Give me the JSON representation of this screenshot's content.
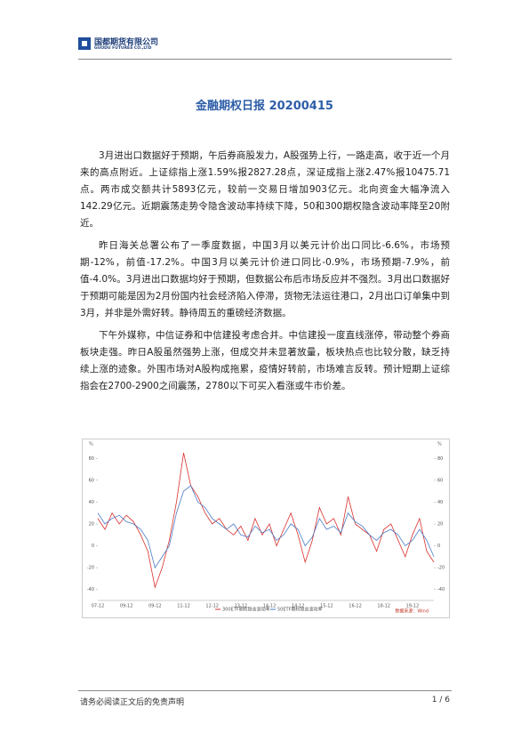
{
  "header": {
    "company": "国都期货有限公司",
    "company_en": "GUODU FUTURES CO.,LTD"
  },
  "title": "金融期权日报 20200415",
  "paragraphs": [
    "3月进出口数据好于预期，午后券商股发力，A股强势上行，一路走高，收于近一个月来的高点附近。上证综指上涨1.59%报2827.28点，深证成指上涨2.47%报10475.71点。两市成交额共计5893亿元，较前一交易日增加903亿元。北向资金大幅净流入142.29亿元。近期震荡走势令隐含波动率持续下降，50和300期权隐含波动率降至20附近。",
    "昨日海关总署公布了一季度数据，中国3月以美元计价出口同比-6.6%，市场预期-12%，前值-17.2%。中国3月以美元计价进口同比-0.9%，市场预期-7.9%，前值-4.0%。3月进出口数据均好于预期，但数据公布后市场反应并不强烈。3月出口数据好于预期可能是因为2月份国内社会经济陷入停滞，货物无法运往港口，2月出口订单集中到3月，并非是外需好转。静待周五的重磅经济数据。",
    "下午外媒称，中信证券和中信建投考虑合并。中信建投一度直线涨停，带动整个券商板块走强。昨日A股虽然强势上涨，但成交并未显著放量，板块热点也比较分散，缺乏持续上涨的迹象。外围市场对A股构成拖累，疫情好转前，市场难言反转。预计短期上证综指会在2700-2900之间震荡，2780以下可买入看涨或牛市价差。"
  ],
  "chart_data": {
    "type": "line",
    "ylabel": "%",
    "y2label": "%",
    "source": "数据来源：Wind",
    "categories": [
      "07-12",
      null,
      null,
      null,
      "09-12",
      null,
      null,
      null,
      "09-12",
      null,
      null,
      null,
      "11-12",
      null,
      null,
      null,
      "12-12",
      null,
      null,
      null,
      "13-12",
      null,
      null,
      null,
      "14-12",
      null,
      null,
      null,
      "14-12",
      null,
      null,
      null,
      "15-12",
      null,
      null,
      null,
      "16-12",
      null,
      null,
      null,
      "18-12",
      null,
      null,
      null,
      "19-12",
      null,
      null,
      null
    ],
    "series": [
      {
        "name": "300ETF期权隐含波动率",
        "color": "#d9302c",
        "values": [
          25,
          15,
          30,
          20,
          28,
          22,
          10,
          -5,
          -38,
          -20,
          5,
          40,
          85,
          55,
          45,
          30,
          20,
          25,
          15,
          10,
          18,
          5,
          25,
          10,
          20,
          0,
          15,
          30,
          10,
          -15,
          5,
          35,
          20,
          25,
          10,
          45,
          20,
          15,
          10,
          -5,
          15,
          20,
          5,
          -10,
          10,
          25,
          -5,
          -15
        ]
      },
      {
        "name": "50ETF期权隐含波动率",
        "color": "#4a7cc9",
        "values": [
          30,
          20,
          25,
          28,
          22,
          20,
          15,
          5,
          -20,
          -10,
          0,
          30,
          50,
          55,
          40,
          35,
          25,
          20,
          15,
          20,
          10,
          8,
          18,
          12,
          15,
          5,
          10,
          20,
          15,
          0,
          8,
          25,
          15,
          18,
          12,
          30,
          22,
          18,
          10,
          5,
          12,
          15,
          10,
          0,
          5,
          15,
          5,
          -10
        ]
      }
    ],
    "ylim": [
      -50,
      90
    ],
    "yticks": [
      -40,
      -20,
      0,
      20,
      40,
      60,
      80
    ],
    "y2lim": [
      -50,
      90
    ],
    "y2ticks": [
      -40,
      -20,
      0,
      20,
      40,
      60,
      80
    ],
    "grid": false
  },
  "footer": {
    "disclaimer": "请务必阅读正文后的免责声明",
    "page": "1 / 6"
  }
}
